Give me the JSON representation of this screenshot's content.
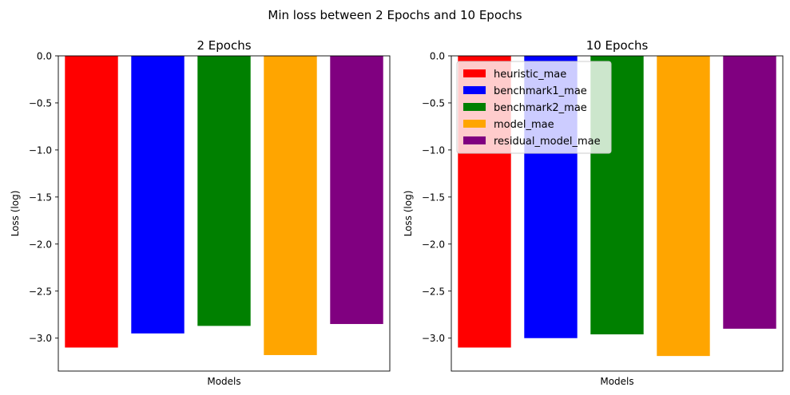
{
  "figure": {
    "title": "Min loss between 2 Epochs and 10 Epochs"
  },
  "chart_data": [
    {
      "type": "bar",
      "title": "2 Epochs",
      "xlabel": "Models",
      "ylabel": "Loss (log)",
      "ylim": [
        -3.35,
        0.0
      ],
      "yticks": [
        0.0,
        -0.5,
        -1.0,
        -1.5,
        -2.0,
        -2.5,
        -3.0
      ],
      "ytick_labels": [
        "0.0",
        "−0.5",
        "−1.0",
        "−1.5",
        "−2.0",
        "−2.5",
        "−3.0"
      ],
      "categories": [
        "heuristic_mae",
        "benchmark1_mae",
        "benchmark2_mae",
        "model_mae",
        "residual_model_mae"
      ],
      "values": [
        -3.1,
        -2.95,
        -2.87,
        -3.18,
        -2.85
      ],
      "colors": [
        "#ff0000",
        "#0000ff",
        "#008000",
        "#ffa500",
        "#800080"
      ],
      "legend": false
    },
    {
      "type": "bar",
      "title": "10 Epochs",
      "xlabel": "Models",
      "ylabel": "Loss (log)",
      "ylim": [
        -3.35,
        0.0
      ],
      "yticks": [
        0.0,
        -0.5,
        -1.0,
        -1.5,
        -2.0,
        -2.5,
        -3.0
      ],
      "ytick_labels": [
        "0.0",
        "−0.5",
        "−1.0",
        "−1.5",
        "−2.0",
        "−2.5",
        "−3.0"
      ],
      "categories": [
        "heuristic_mae",
        "benchmark1_mae",
        "benchmark2_mae",
        "model_mae",
        "residual_model_mae"
      ],
      "values": [
        -3.1,
        -3.0,
        -2.96,
        -3.19,
        -2.9
      ],
      "colors": [
        "#ff0000",
        "#0000ff",
        "#008000",
        "#ffa500",
        "#800080"
      ],
      "legend": true,
      "legend_placement": "upper-left"
    }
  ]
}
